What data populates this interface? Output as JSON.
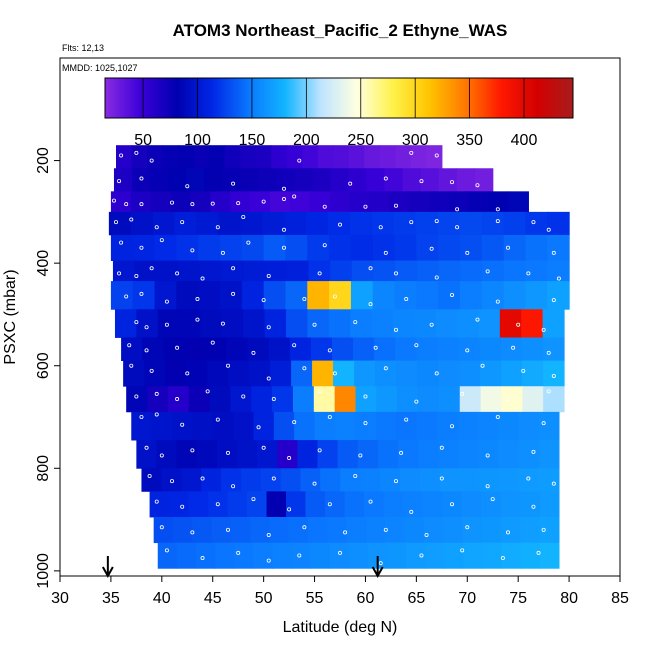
{
  "chart_data": {
    "type": "heatmap",
    "title": "ATOM3 Northeast_Pacific_2 Ethyne_WAS",
    "subtitle_lines": [
      "Flts: 12,13",
      "MMDD: 1025,1027"
    ],
    "xlabel": "Latitude (deg N)",
    "ylabel": "PSXC (mbar)",
    "xlim": [
      30,
      85
    ],
    "ylim": [
      1010,
      0
    ],
    "x_ticks": [
      "30",
      "35",
      "40",
      "45",
      "50",
      "55",
      "60",
      "65",
      "70",
      "75",
      "80",
      "85"
    ],
    "y_ticks": [
      "200",
      "400",
      "600",
      "800",
      "1000"
    ],
    "colorbar": {
      "range": [
        15,
        445
      ],
      "ticks": [
        "50",
        "100",
        "150",
        "200",
        "250",
        "300",
        "350",
        "400"
      ],
      "colors": [
        "#8a2be2",
        "#3a00d8",
        "#0000b0",
        "#0028e6",
        "#0a78ff",
        "#12b4ff",
        "#bfe4ff",
        "#ffffe0",
        "#fff24a",
        "#ffc400",
        "#ff7a00",
        "#ff1800",
        "#d40000",
        "#a81c1c"
      ]
    },
    "arrows_lat": [
      34.7,
      61.2
    ],
    "bands": [
      {
        "p_top": 170,
        "p_bot": 215,
        "lat_start": 35.5,
        "lat_end": 67.5,
        "values": [
          60,
          70,
          75,
          78,
          80,
          76,
          80,
          72,
          68,
          66,
          55,
          50,
          45,
          40,
          38,
          35,
          30,
          28,
          25,
          22,
          20
        ]
      },
      {
        "p_top": 215,
        "p_bot": 260,
        "lat_start": 35.3,
        "lat_end": 72.5,
        "values": [
          65,
          75,
          78,
          82,
          85,
          80,
          78,
          76,
          74,
          72,
          70,
          66,
          60,
          55,
          50,
          45,
          40,
          36,
          32,
          28,
          25
        ]
      },
      {
        "p_top": 260,
        "p_bot": 300,
        "lat_start": 35.0,
        "lat_end": 76.0,
        "values": [
          55,
          65,
          70,
          74,
          70,
          60,
          52,
          48,
          44,
          46,
          50,
          55,
          60,
          62,
          66,
          70,
          72,
          74,
          78,
          82,
          85
        ]
      },
      {
        "p_top": 300,
        "p_bot": 345,
        "lat_start": 34.8,
        "lat_end": 80.0,
        "values": [
          90,
          95,
          100,
          105,
          102,
          98,
          100,
          104,
          108,
          112,
          116,
          118,
          120,
          122,
          124,
          126,
          128,
          126,
          124,
          120,
          118
        ]
      },
      {
        "p_top": 345,
        "p_bot": 395,
        "lat_start": 35.0,
        "lat_end": 80.0,
        "values": [
          110,
          112,
          115,
          118,
          122,
          125,
          128,
          135,
          130,
          122,
          118,
          116,
          118,
          121,
          125,
          128,
          130,
          134,
          140,
          145,
          148
        ]
      },
      {
        "p_top": 395,
        "p_bot": 435,
        "lat_start": 35.2,
        "lat_end": 80.0,
        "values": [
          100,
          95,
          96,
          98,
          100,
          102,
          104,
          106,
          108,
          118,
          124,
          130,
          132,
          135,
          138,
          140,
          142,
          144,
          146,
          148,
          150
        ]
      },
      {
        "p_top": 435,
        "p_bot": 490,
        "lat_start": 35.0,
        "lat_end": 80.0,
        "values": [
          125,
          120,
          100,
          90,
          92,
          96,
          110,
          130,
          140,
          320,
          300,
          170,
          155,
          150,
          148,
          145,
          150,
          155,
          160,
          165,
          170
        ]
      },
      {
        "p_top": 490,
        "p_bot": 545,
        "lat_start": 35.4,
        "lat_end": 79.5,
        "values": [
          110,
          95,
          85,
          86,
          90,
          92,
          98,
          110,
          130,
          140,
          145,
          150,
          152,
          155,
          156,
          158,
          160,
          162,
          400,
          380,
          170
        ]
      },
      {
        "p_top": 545,
        "p_bot": 590,
        "lat_start": 36.0,
        "lat_end": 79.5,
        "values": [
          92,
          85,
          82,
          80,
          82,
          86,
          90,
          96,
          110,
          120,
          130,
          138,
          144,
          148,
          150,
          152,
          154,
          156,
          158,
          160,
          162
        ]
      },
      {
        "p_top": 590,
        "p_bot": 640,
        "lat_start": 36.2,
        "lat_end": 79.5,
        "values": [
          90,
          86,
          80,
          84,
          88,
          92,
          96,
          105,
          140,
          320,
          180,
          165,
          160,
          158,
          156,
          158,
          160,
          165,
          170,
          175,
          180
        ]
      },
      {
        "p_top": 640,
        "p_bot": 690,
        "lat_start": 36.5,
        "lat_end": 79.5,
        "values": [
          85,
          70,
          60,
          75,
          90,
          100,
          110,
          120,
          150,
          260,
          340,
          170,
          165,
          160,
          158,
          160,
          220,
          240,
          250,
          230,
          210
        ]
      },
      {
        "p_top": 690,
        "p_bot": 745,
        "lat_start": 37.0,
        "lat_end": 79.0,
        "values": [
          100,
          98,
          96,
          94,
          92,
          95,
          110,
          130,
          145,
          150,
          152,
          150,
          148,
          146,
          148,
          150,
          152,
          154,
          156,
          158,
          160
        ]
      },
      {
        "p_top": 745,
        "p_bot": 800,
        "lat_start": 37.5,
        "lat_end": 79.0,
        "values": [
          95,
          90,
          85,
          88,
          92,
          96,
          100,
          60,
          110,
          125,
          135,
          140,
          145,
          148,
          150,
          152,
          154,
          156,
          158,
          160,
          162
        ]
      },
      {
        "p_top": 800,
        "p_bot": 845,
        "lat_start": 38.0,
        "lat_end": 79.0,
        "values": [
          90,
          95,
          100,
          110,
          118,
          122,
          125,
          130,
          138,
          145,
          150,
          152,
          155,
          158,
          160,
          162,
          163,
          164,
          165,
          166,
          167
        ]
      },
      {
        "p_top": 845,
        "p_bot": 895,
        "lat_start": 38.8,
        "lat_end": 79.0,
        "values": [
          110,
          112,
          115,
          118,
          122,
          126,
          80,
          120,
          135,
          140,
          145,
          148,
          150,
          152,
          154,
          156,
          158,
          160,
          162,
          164,
          166
        ]
      },
      {
        "p_top": 895,
        "p_bot": 945,
        "lat_start": 39.2,
        "lat_end": 79.0,
        "values": [
          130,
          132,
          134,
          136,
          138,
          140,
          142,
          144,
          146,
          148,
          150,
          152,
          154,
          156,
          158,
          160,
          162,
          164,
          166,
          168,
          170
        ]
      },
      {
        "p_top": 945,
        "p_bot": 995,
        "lat_start": 39.6,
        "lat_end": 79.0,
        "values": [
          140,
          142,
          144,
          146,
          148,
          150,
          152,
          154,
          156,
          158,
          160,
          162,
          164,
          166,
          168,
          170,
          172,
          174,
          176,
          178,
          180
        ]
      }
    ],
    "samples": [
      [
        36.0,
        190
      ],
      [
        37.5,
        185
      ],
      [
        39.0,
        200
      ],
      [
        53.5,
        200
      ],
      [
        64.5,
        185
      ],
      [
        67.0,
        190
      ],
      [
        35.8,
        240
      ],
      [
        38.0,
        235
      ],
      [
        42.5,
        250
      ],
      [
        47.0,
        245
      ],
      [
        52.0,
        255
      ],
      [
        58.5,
        245
      ],
      [
        62.0,
        235
      ],
      [
        65.5,
        240
      ],
      [
        68.5,
        242
      ],
      [
        71.0,
        248
      ],
      [
        35.3,
        278
      ],
      [
        36.5,
        285
      ],
      [
        38.0,
        285
      ],
      [
        41.0,
        282
      ],
      [
        43.0,
        285
      ],
      [
        45.0,
        284
      ],
      [
        47.5,
        283
      ],
      [
        50.0,
        280
      ],
      [
        52.0,
        275
      ],
      [
        53.0,
        270
      ],
      [
        56.0,
        290
      ],
      [
        60.0,
        290
      ],
      [
        63.0,
        288
      ],
      [
        69.0,
        295
      ],
      [
        73.0,
        295
      ],
      [
        35.5,
        320
      ],
      [
        37.0,
        315
      ],
      [
        39.5,
        330
      ],
      [
        42.0,
        320
      ],
      [
        45.5,
        330
      ],
      [
        48.0,
        310
      ],
      [
        52.0,
        335
      ],
      [
        57.5,
        325
      ],
      [
        61.5,
        330
      ],
      [
        64.5,
        320
      ],
      [
        67.0,
        318
      ],
      [
        69.0,
        330
      ],
      [
        73.0,
        318
      ],
      [
        76.5,
        320
      ],
      [
        78.0,
        335
      ],
      [
        36.0,
        360
      ],
      [
        38.0,
        370
      ],
      [
        40.0,
        355
      ],
      [
        43.0,
        375
      ],
      [
        46.0,
        380
      ],
      [
        48.5,
        360
      ],
      [
        52.0,
        370
      ],
      [
        56.0,
        365
      ],
      [
        62.0,
        380
      ],
      [
        66.5,
        372
      ],
      [
        70.0,
        380
      ],
      [
        74.0,
        370
      ],
      [
        78.5,
        380
      ],
      [
        35.8,
        420
      ],
      [
        37.5,
        425
      ],
      [
        39.0,
        410
      ],
      [
        41.5,
        420
      ],
      [
        44.0,
        430
      ],
      [
        47.0,
        410
      ],
      [
        50.5,
        425
      ],
      [
        55.5,
        420
      ],
      [
        60.5,
        410
      ],
      [
        63.0,
        420
      ],
      [
        67.0,
        428
      ],
      [
        72.0,
        416
      ],
      [
        76.0,
        420
      ],
      [
        79.0,
        430
      ],
      [
        36.5,
        465
      ],
      [
        38.0,
        460
      ],
      [
        40.5,
        475
      ],
      [
        43.5,
        470
      ],
      [
        47.0,
        460
      ],
      [
        50.0,
        472
      ],
      [
        54.0,
        470
      ],
      [
        57.0,
        465
      ],
      [
        60.5,
        480
      ],
      [
        64.0,
        470
      ],
      [
        68.5,
        462
      ],
      [
        73.0,
        475
      ],
      [
        78.5,
        472
      ],
      [
        37.5,
        515
      ],
      [
        38.5,
        525
      ],
      [
        40.5,
        520
      ],
      [
        43.5,
        510
      ],
      [
        46.0,
        518
      ],
      [
        50.5,
        525
      ],
      [
        55.0,
        520
      ],
      [
        59.0,
        515
      ],
      [
        63.0,
        530
      ],
      [
        66.5,
        520
      ],
      [
        71.0,
        510
      ],
      [
        75.0,
        520
      ],
      [
        77.5,
        530
      ],
      [
        36.8,
        560
      ],
      [
        38.5,
        570
      ],
      [
        41.5,
        565
      ],
      [
        45.0,
        555
      ],
      [
        49.0,
        575
      ],
      [
        53.0,
        560
      ],
      [
        56.5,
        570
      ],
      [
        61.0,
        565
      ],
      [
        65.0,
        560
      ],
      [
        70.0,
        570
      ],
      [
        74.5,
        565
      ],
      [
        78.0,
        575
      ],
      [
        37.0,
        600
      ],
      [
        39.0,
        610
      ],
      [
        42.5,
        615
      ],
      [
        46.5,
        600
      ],
      [
        50.5,
        625
      ],
      [
        54.0,
        605
      ],
      [
        57.0,
        615
      ],
      [
        62.0,
        605
      ],
      [
        67.0,
        615
      ],
      [
        71.5,
        600
      ],
      [
        75.5,
        610
      ],
      [
        78.5,
        620
      ],
      [
        37.5,
        660
      ],
      [
        39.5,
        655
      ],
      [
        41.5,
        665
      ],
      [
        44.5,
        650
      ],
      [
        48.0,
        660
      ],
      [
        51.0,
        665
      ],
      [
        55.5,
        650
      ],
      [
        60.0,
        660
      ],
      [
        65.0,
        670
      ],
      [
        69.5,
        655
      ],
      [
        74.0,
        665
      ],
      [
        78.0,
        650
      ],
      [
        38.0,
        700
      ],
      [
        39.5,
        695
      ],
      [
        42.0,
        715
      ],
      [
        45.5,
        705
      ],
      [
        49.5,
        720
      ],
      [
        53.0,
        710
      ],
      [
        56.5,
        700
      ],
      [
        60.0,
        712
      ],
      [
        64.0,
        705
      ],
      [
        68.5,
        718
      ],
      [
        73.0,
        700
      ],
      [
        77.5,
        712
      ],
      [
        38.5,
        760
      ],
      [
        40.0,
        775
      ],
      [
        43.0,
        765
      ],
      [
        46.5,
        770
      ],
      [
        50.0,
        760
      ],
      [
        52.5,
        780
      ],
      [
        55.5,
        765
      ],
      [
        59.5,
        775
      ],
      [
        63.5,
        770
      ],
      [
        67.5,
        760
      ],
      [
        72.0,
        775
      ],
      [
        76.5,
        768
      ],
      [
        38.8,
        815
      ],
      [
        41.0,
        825
      ],
      [
        44.0,
        820
      ],
      [
        47.0,
        835
      ],
      [
        51.0,
        820
      ],
      [
        55.0,
        830
      ],
      [
        59.0,
        815
      ],
      [
        63.0,
        825
      ],
      [
        67.5,
        820
      ],
      [
        72.0,
        835
      ],
      [
        76.0,
        820
      ],
      [
        78.5,
        830
      ],
      [
        39.5,
        865
      ],
      [
        42.0,
        875
      ],
      [
        45.5,
        870
      ],
      [
        49.0,
        860
      ],
      [
        52.5,
        880
      ],
      [
        56.5,
        870
      ],
      [
        60.5,
        865
      ],
      [
        64.5,
        885
      ],
      [
        68.5,
        870
      ],
      [
        72.5,
        860
      ],
      [
        76.5,
        875
      ],
      [
        40.0,
        915
      ],
      [
        43.0,
        925
      ],
      [
        46.5,
        920
      ],
      [
        50.5,
        930
      ],
      [
        54.0,
        915
      ],
      [
        58.0,
        925
      ],
      [
        62.0,
        920
      ],
      [
        66.0,
        930
      ],
      [
        70.0,
        915
      ],
      [
        74.0,
        925
      ],
      [
        77.5,
        920
      ],
      [
        40.5,
        960
      ],
      [
        44.0,
        975
      ],
      [
        47.5,
        965
      ],
      [
        50.5,
        980
      ],
      [
        53.5,
        970
      ],
      [
        57.5,
        965
      ],
      [
        61.5,
        985
      ],
      [
        65.5,
        970
      ],
      [
        69.5,
        960
      ],
      [
        73.5,
        975
      ],
      [
        77.0,
        965
      ]
    ]
  }
}
